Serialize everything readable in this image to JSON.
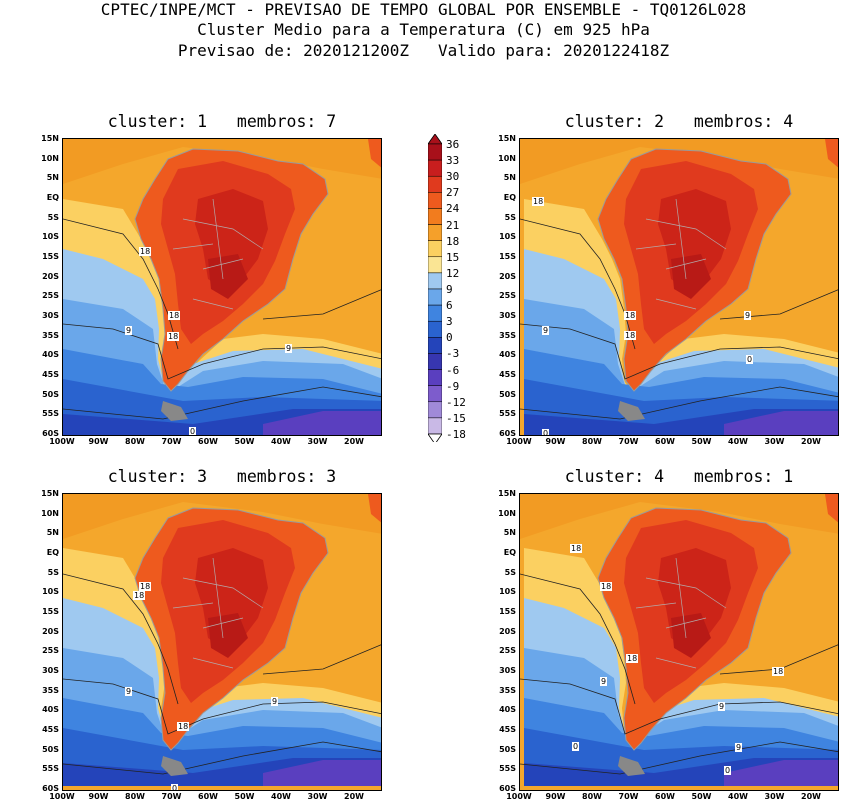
{
  "header": {
    "line1": "CPTEC/INPE/MCT - PREVISAO DE TEMPO GLOBAL POR ENSEMBLE - TQ0126L028",
    "line2": "Cluster Medio para a Temperatura (C) em 925 hPa",
    "line3": "Previsao de: 2020121200Z   Valido para: 2020122418Z"
  },
  "lat_labels": [
    "15N",
    "10N",
    "5N",
    "EQ",
    "5S",
    "10S",
    "15S",
    "20S",
    "25S",
    "30S",
    "35S",
    "40S",
    "45S",
    "50S",
    "55S",
    "60S"
  ],
  "lon_labels": [
    "100W",
    "90W",
    "80W",
    "70W",
    "60W",
    "50W",
    "40W",
    "30W",
    "20W"
  ],
  "panels": [
    {
      "title": "cluster: 1   membros: 7",
      "contour_labels": [
        "18",
        "18",
        "18",
        "9",
        "9",
        "0"
      ]
    },
    {
      "title": "cluster: 2   membros: 4",
      "contour_labels": [
        "18",
        "18",
        "18",
        "9",
        "9",
        "0",
        "0"
      ]
    },
    {
      "title": "cluster: 3   membros: 3",
      "contour_labels": [
        "18",
        "18",
        "18",
        "9",
        "9",
        "0"
      ]
    },
    {
      "title": "cluster: 4   membros: 1",
      "contour_labels": [
        "18",
        "18",
        "18",
        "18",
        "9",
        "9",
        "9",
        "0",
        "0"
      ]
    }
  ],
  "legend": {
    "labels": [
      "36",
      "33",
      "30",
      "27",
      "24",
      "21",
      "18",
      "15",
      "12",
      "9",
      "6",
      "3",
      "0",
      "-3",
      "-6",
      "-9",
      "-12",
      "-15",
      "-18"
    ],
    "colors": [
      "#a8101a",
      "#c81e1e",
      "#e03a1e",
      "#ee5a1e",
      "#f27c1e",
      "#f5a02a",
      "#fbd061",
      "#fae594",
      "#9fc9f0",
      "#6aa7ea",
      "#3f84e0",
      "#2a63cf",
      "#2444ba",
      "#3736b0",
      "#5a3fbf",
      "#7d5ccc",
      "#a08ad8",
      "#c9b9e6"
    ]
  },
  "colors": {
    "ocean_warm": "#f4a72c",
    "land_hot": "#e8401e",
    "land_core": "#cc2418"
  }
}
